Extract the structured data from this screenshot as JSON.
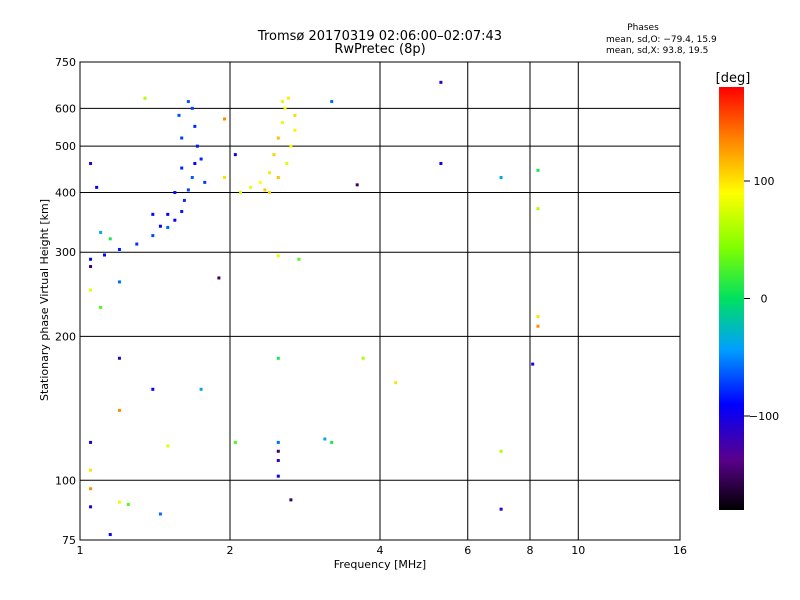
{
  "chart_data": {
    "type": "scatter",
    "title": "Tromsø 20170319 02:06:00–02:07:43",
    "subtitle": "RwPretec (8p)",
    "xlabel": "Frequency [MHz]",
    "ylabel": "Stationary phase Virtual Height [km]",
    "x_scale": "log",
    "y_scale": "log",
    "xlim": [
      1,
      16
    ],
    "ylim": [
      75,
      750
    ],
    "x_ticks": [
      1,
      2,
      4,
      6,
      8,
      10,
      16
    ],
    "y_ticks": [
      75,
      100,
      200,
      300,
      400,
      500,
      600,
      750
    ],
    "grid": true,
    "phases_box": {
      "title": "Phases",
      "line1": "mean, sd,O: −79.4, 15.9",
      "line2": "mean, sd,X:  93.8, 19.5"
    },
    "colorbar": {
      "label": "[deg]",
      "ticks": [
        100,
        0,
        -100
      ],
      "range": [
        -180,
        180
      ]
    },
    "series": [
      {
        "mode": "O",
        "mean": -79.4,
        "sd": 15.9,
        "points": [
          [
            1.05,
            290
          ],
          [
            1.12,
            296
          ],
          [
            1.2,
            304
          ],
          [
            1.3,
            312
          ],
          [
            1.4,
            325
          ],
          [
            1.5,
            338
          ],
          [
            1.55,
            350
          ],
          [
            1.6,
            365
          ],
          [
            1.62,
            385
          ],
          [
            1.65,
            405
          ],
          [
            1.68,
            430
          ],
          [
            1.7,
            460
          ],
          [
            1.72,
            500
          ],
          [
            1.7,
            550
          ],
          [
            1.68,
            600
          ],
          [
            1.65,
            620
          ],
          [
            1.5,
            360
          ],
          [
            1.55,
            400
          ],
          [
            1.6,
            450
          ],
          [
            1.6,
            520
          ],
          [
            1.58,
            580
          ],
          [
            1.45,
            340
          ],
          [
            1.4,
            360
          ],
          [
            1.75,
            470
          ],
          [
            1.78,
            420
          ]
        ]
      },
      {
        "mode": "X",
        "mean": 93.8,
        "sd": 19.5,
        "points": [
          [
            2.1,
            400
          ],
          [
            2.2,
            410
          ],
          [
            2.3,
            420
          ],
          [
            2.4,
            440
          ],
          [
            2.45,
            480
          ],
          [
            2.5,
            520
          ],
          [
            2.55,
            560
          ],
          [
            2.58,
            600
          ],
          [
            2.62,
            630
          ],
          [
            2.4,
            400
          ],
          [
            2.5,
            430
          ],
          [
            2.6,
            460
          ],
          [
            2.65,
            500
          ],
          [
            2.7,
            540
          ],
          [
            2.7,
            580
          ],
          [
            2.35,
            405
          ],
          [
            2.55,
            620
          ]
        ]
      },
      {
        "mode": "scattered",
        "points": [
          [
            1.05,
            280
          ],
          [
            1.05,
            460
          ],
          [
            1.08,
            410
          ],
          [
            1.1,
            330
          ],
          [
            1.15,
            320
          ],
          [
            1.35,
            630
          ],
          [
            1.95,
            430
          ],
          [
            1.95,
            570
          ],
          [
            2.05,
            480
          ],
          [
            2.5,
            295
          ],
          [
            2.75,
            290
          ],
          [
            3.2,
            620
          ],
          [
            3.6,
            415
          ],
          [
            5.3,
            680
          ],
          [
            5.3,
            460
          ],
          [
            7.0,
            430
          ],
          [
            8.3,
            445
          ],
          [
            8.3,
            370
          ],
          [
            8.3,
            220
          ],
          [
            8.3,
            210
          ],
          [
            8.1,
            175
          ],
          [
            1.05,
            250
          ],
          [
            1.1,
            230
          ],
          [
            1.2,
            260
          ],
          [
            1.9,
            265
          ],
          [
            1.2,
            180
          ],
          [
            1.4,
            155
          ],
          [
            1.75,
            155
          ],
          [
            2.5,
            180
          ],
          [
            3.7,
            180
          ],
          [
            4.3,
            160
          ],
          [
            1.2,
            140
          ],
          [
            1.05,
            120
          ],
          [
            1.5,
            118
          ],
          [
            2.05,
            120
          ],
          [
            2.5,
            120
          ],
          [
            2.5,
            115
          ],
          [
            2.5,
            110
          ],
          [
            2.5,
            102
          ],
          [
            3.1,
            122
          ],
          [
            3.2,
            120
          ],
          [
            7.0,
            115
          ],
          [
            1.05,
            105
          ],
          [
            1.05,
            96
          ],
          [
            1.05,
            88
          ],
          [
            1.2,
            90
          ],
          [
            1.25,
            89
          ],
          [
            1.45,
            85
          ],
          [
            2.65,
            91
          ],
          [
            7.0,
            87
          ],
          [
            1.15,
            77
          ]
        ]
      }
    ]
  }
}
